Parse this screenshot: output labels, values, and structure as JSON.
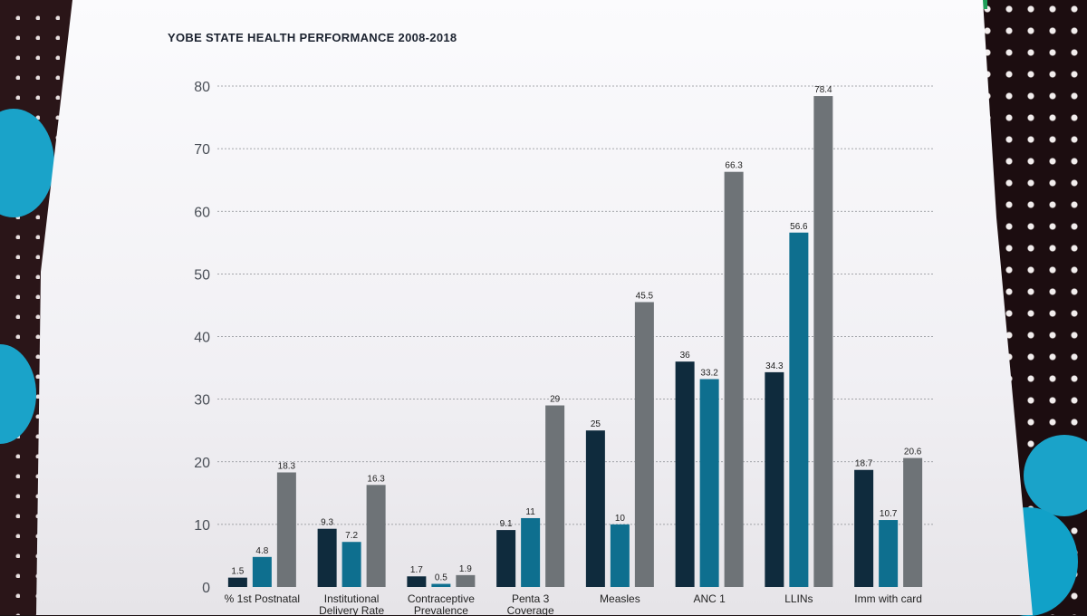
{
  "chart_data": {
    "type": "bar",
    "title": "YOBE STATE HEALTH PERFORMANCE 2008-2018",
    "categories": [
      [
        "% 1st Postnatal",
        ""
      ],
      [
        "Institutional",
        "Delivery Rate"
      ],
      [
        "Contraceptive",
        "Prevalence"
      ],
      [
        "Penta 3",
        "Coverage"
      ],
      [
        "Measles",
        ""
      ],
      [
        "ANC 1",
        ""
      ],
      [
        "LLINs",
        ""
      ],
      [
        "Imm with card",
        ""
      ]
    ],
    "series": [
      {
        "color": "#0f2b3d",
        "values": [
          1.5,
          9.3,
          1.7,
          9.1,
          25,
          36,
          34.3,
          18.7
        ]
      },
      {
        "color": "#0e6f8f",
        "values": [
          4.8,
          7.2,
          0.5,
          11,
          10,
          33.2,
          56.6,
          10.7
        ]
      },
      {
        "color": "#6e7377",
        "values": [
          18.3,
          16.3,
          1.9,
          29,
          45.5,
          66.3,
          78.4,
          20.6
        ]
      }
    ],
    "ylim": [
      0,
      80
    ],
    "yticks": [
      0,
      10,
      20,
      30,
      40,
      50,
      60,
      70,
      80
    ],
    "grid": true
  }
}
